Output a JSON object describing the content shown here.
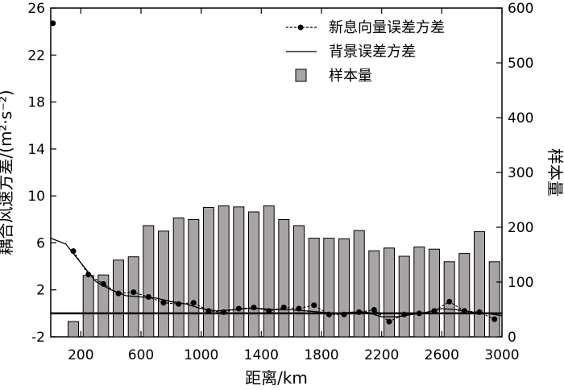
{
  "chart_data": {
    "type": "bar",
    "xlabel": "距离/km",
    "ylabel_left": "耦合风速方差/(m²·s⁻²)",
    "ylabel_right": "样本量",
    "xlim": [
      0,
      3000
    ],
    "x_ticks": [
      200,
      600,
      1000,
      1400,
      1800,
      2200,
      2600,
      3000
    ],
    "ylim_left": [
      -2,
      26
    ],
    "y_ticks_left": [
      -2,
      2,
      6,
      10,
      14,
      18,
      22,
      26
    ],
    "ylim_right": [
      0,
      600
    ],
    "y_ticks_right": [
      0,
      100,
      200,
      300,
      400,
      500,
      600
    ],
    "legend": {
      "position": "top-right",
      "entries": [
        {
          "label": "新息向量误差方差",
          "style": "dashed-dot"
        },
        {
          "label": "背景误差方差",
          "style": "solid"
        },
        {
          "label": "样本量",
          "style": "bar"
        }
      ]
    },
    "series": [
      {
        "name": "样本量",
        "type": "bar",
        "axis": "right",
        "color": "#a9a4a4",
        "x": [
          150,
          250,
          350,
          450,
          550,
          650,
          750,
          850,
          950,
          1050,
          1150,
          1250,
          1350,
          1450,
          1550,
          1650,
          1750,
          1850,
          1950,
          2050,
          2150,
          2250,
          2350,
          2450,
          2550,
          2650,
          2750,
          2850,
          2950
        ],
        "values": [
          28,
          112,
          113,
          140,
          146,
          203,
          193,
          217,
          214,
          236,
          239,
          237,
          228,
          239,
          214,
          203,
          180,
          180,
          179,
          194,
          157,
          162,
          147,
          164,
          160,
          137,
          152,
          192,
          137
        ]
      },
      {
        "name": "新息向量误差方差",
        "type": "line",
        "axis": "left",
        "style": "dashed",
        "markers": true,
        "x": [
          15,
          150,
          250,
          350,
          450,
          550,
          650,
          750,
          850,
          950,
          1050,
          1150,
          1250,
          1350,
          1450,
          1550,
          1650,
          1750,
          1850,
          1950,
          2050,
          2150,
          2250,
          2350,
          2450,
          2550,
          2650,
          2750,
          2850,
          2950
        ],
        "values": [
          24.7,
          5.3,
          3.3,
          2.5,
          1.7,
          1.8,
          1.4,
          0.9,
          0.8,
          0.9,
          0.2,
          0.1,
          0.4,
          0.5,
          0.2,
          0.5,
          0.4,
          0.7,
          -0.1,
          -0.1,
          0.1,
          0.3,
          -0.7,
          -0.1,
          0.0,
          0.2,
          1.0,
          0.2,
          0.1,
          -0.5
        ]
      },
      {
        "name": "背景误差方差",
        "type": "line",
        "axis": "left",
        "style": "solid",
        "x": [
          0,
          100,
          200,
          300,
          400,
          500,
          600,
          700,
          800,
          900,
          1000,
          1100,
          1200,
          1300,
          1400,
          1500,
          1600,
          1700,
          1800,
          1900,
          2000,
          2100,
          2200,
          2300,
          2400,
          2500,
          2600,
          2700,
          2800,
          2900,
          3000
        ],
        "values": [
          6.4,
          5.9,
          4.3,
          2.7,
          2.0,
          1.5,
          1.4,
          1.3,
          1.0,
          0.8,
          0.4,
          0.2,
          0.3,
          0.4,
          0.4,
          0.3,
          0.3,
          0.2,
          0.1,
          0.0,
          0.1,
          0.1,
          -0.3,
          -0.3,
          -0.1,
          0.1,
          0.4,
          0.3,
          0.1,
          0.0,
          -0.2
        ]
      },
      {
        "name": "reference",
        "type": "hline",
        "axis": "left",
        "style": "solid-thick",
        "value": 0
      }
    ]
  }
}
